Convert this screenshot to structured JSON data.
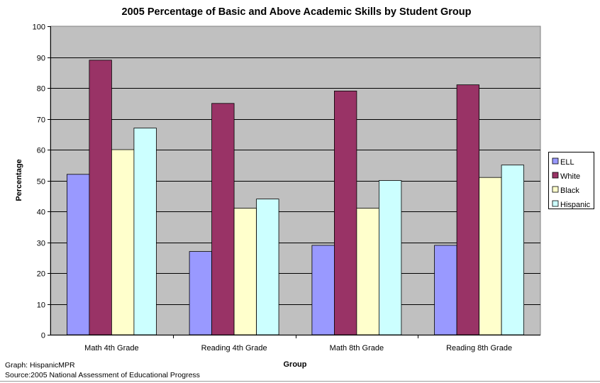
{
  "chart_data": {
    "type": "bar",
    "title": "2005 Percentage of Basic and Above Academic Skills by Student Group",
    "xlabel": "Group",
    "ylabel": "Percentage",
    "ylim": [
      0,
      100
    ],
    "yticks": [
      0,
      10,
      20,
      30,
      40,
      50,
      60,
      70,
      80,
      90,
      100
    ],
    "grid": true,
    "legend_position": "right",
    "categories": [
      "Math 4th Grade",
      "Reading 4th Grade",
      "Math 8th Grade",
      "Reading 8th Grade"
    ],
    "series": [
      {
        "name": "ELL",
        "values": [
          52,
          27,
          29,
          29
        ],
        "color": "#9999ff"
      },
      {
        "name": "White",
        "values": [
          89,
          75,
          79,
          81
        ],
        "color": "#993366"
      },
      {
        "name": "Black",
        "values": [
          60,
          41,
          41,
          51
        ],
        "color": "#ffffcc"
      },
      {
        "name": "Hispanic",
        "values": [
          67,
          44,
          50,
          55
        ],
        "color": "#ccffff"
      }
    ],
    "plot_background": "#c0c0c0"
  },
  "credits": {
    "graph": "Graph: HispanicMPR",
    "source": "Source:2005 National Assessment of Educational Progress"
  }
}
